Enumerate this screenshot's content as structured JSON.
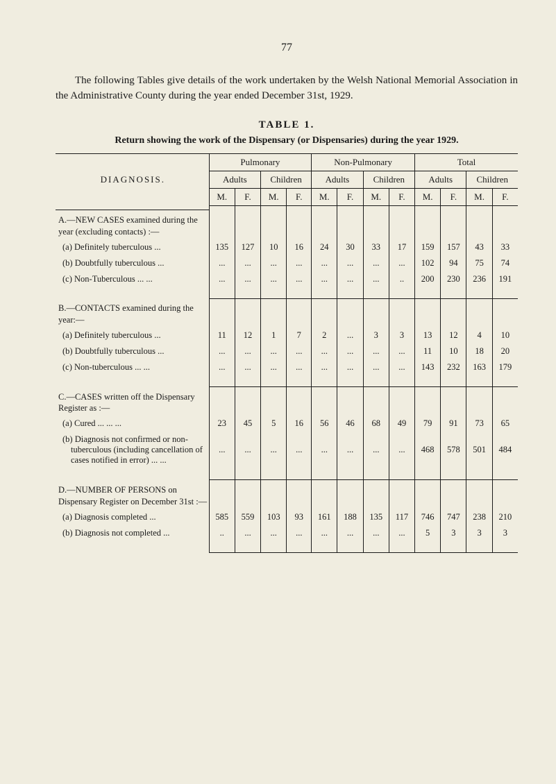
{
  "page_number": "77",
  "intro": "The following Tables give details of the work undertaken by the Welsh National Memorial Association in the Administrative County during the year ended December 31st, 1929.",
  "table_label": "TABLE 1.",
  "table_caption": "Return showing the work of the Dispensary (or Dispensaries) during the year 1929.",
  "headers": {
    "diagnosis": "DIAGNOSIS.",
    "pulmonary": "Pulmonary",
    "non_pulmonary": "Non-Pulmonary",
    "total": "Total",
    "adults": "Adults",
    "children": "Children",
    "m": "M.",
    "f": "F."
  },
  "sections": {
    "A": {
      "title": "A.—NEW CASES examined during the year (excluding contacts) :—",
      "rows": [
        {
          "label": "(a) Definitely tuberculous   ...",
          "vals": [
            "135",
            "127",
            "10",
            "16",
            "24",
            "30",
            "33",
            "17",
            "159",
            "157",
            "43",
            "33"
          ]
        },
        {
          "label": "(b) Doubtfully tuberculous  ...",
          "vals": [
            "...",
            "...",
            "...",
            "...",
            "...",
            "...",
            "...",
            "...",
            "102",
            "94",
            "75",
            "74"
          ]
        },
        {
          "label": "(c) Non-Tuberculous    ...    ...",
          "vals": [
            "...",
            "...",
            "...",
            "...",
            "...",
            "...",
            "...",
            "..",
            "200",
            "230",
            "236",
            "191"
          ]
        }
      ]
    },
    "B": {
      "title": "B.—CONTACTS examined during the year:—",
      "rows": [
        {
          "label": "(a) Definitely tuberculous    ...",
          "vals": [
            "11",
            "12",
            "1",
            "7",
            "2",
            "...",
            "3",
            "3",
            "13",
            "12",
            "4",
            "10"
          ]
        },
        {
          "label": "(b) Doubtfully tuberculous  ...",
          "vals": [
            "...",
            "...",
            "...",
            "...",
            "...",
            "...",
            "...",
            "...",
            "11",
            "10",
            "18",
            "20"
          ]
        },
        {
          "label": "(c) Non-tuberculous     ...     ...",
          "vals": [
            "...",
            "...",
            "...",
            "...",
            "...",
            "...",
            "...",
            "...",
            "143",
            "232",
            "163",
            "179"
          ]
        }
      ]
    },
    "C": {
      "title": "C.—CASES written off the Dispensary Register  as :—",
      "rows": [
        {
          "label": "(a) Cured          ...     ...     ...",
          "vals": [
            "23",
            "45",
            "5",
            "16",
            "56",
            "46",
            "68",
            "49",
            "79",
            "91",
            "73",
            "65"
          ]
        },
        {
          "label": "(b) Diagnosis not confirmed or non-tuberculous (including cancellation of cases notified in error)       ...    ...",
          "vals": [
            "...",
            "...",
            "...",
            "...",
            "...",
            "...",
            "...",
            "...",
            "468",
            "578",
            "501",
            "484"
          ]
        }
      ]
    },
    "D": {
      "title": "D.—NUMBER OF PERSONS on Dispensary Register on December 31st :—",
      "rows": [
        {
          "label": "(a) Diagnosis completed       ...",
          "vals": [
            "585",
            "559",
            "103",
            "93",
            "161",
            "188",
            "135",
            "117",
            "746",
            "747",
            "238",
            "210"
          ]
        },
        {
          "label": "(b) Diagnosis not completed ...",
          "vals": [
            "..",
            "...",
            "...",
            "...",
            "...",
            "...",
            "...",
            "...",
            "5",
            "3",
            "3",
            "3"
          ]
        }
      ]
    }
  }
}
